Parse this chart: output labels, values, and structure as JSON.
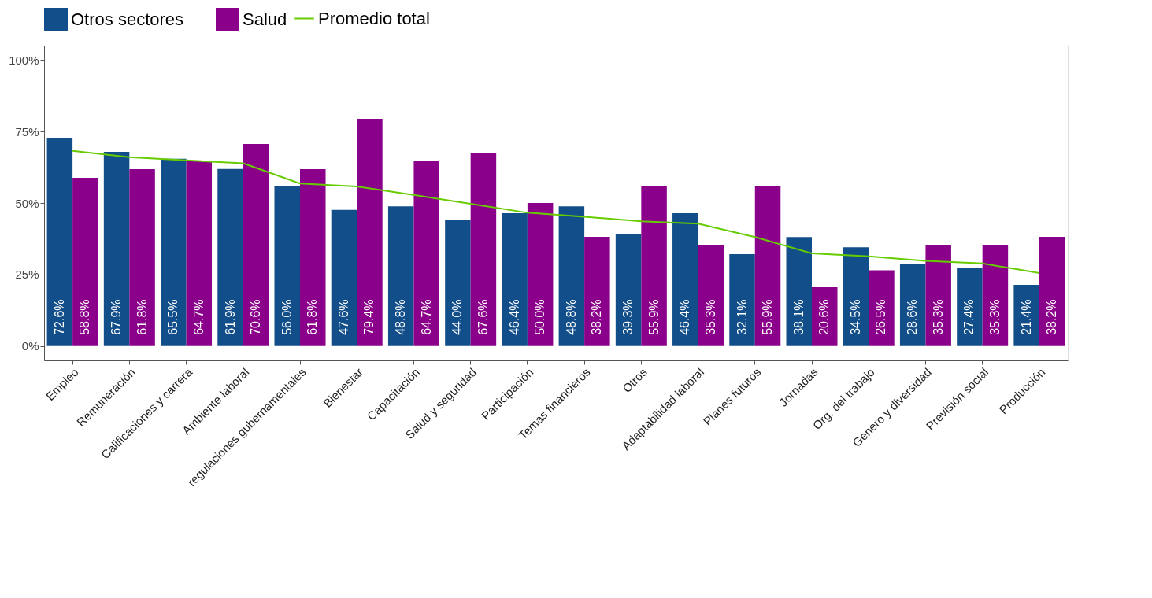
{
  "chart_data": {
    "type": "bar",
    "categories": [
      "Empleo",
      "Remuneración",
      "Calificaciones y carrera",
      "Ambiente laboral",
      "regulaciones gubernamentales",
      "Bienestar",
      "Capacitación",
      "Salud y seguridad",
      "Participación",
      "Temas financieros",
      "Otros",
      "Adaptabilidad laboral",
      "Planes futuros",
      "Jornadas",
      "Org. del trabajo",
      "Género y diversidad",
      "Previsión social",
      "Producción"
    ],
    "series": [
      {
        "name": "Otros sectores",
        "color": "#124e89",
        "values": [
          72.6,
          67.9,
          65.5,
          61.9,
          56.0,
          47.6,
          48.8,
          44.0,
          46.4,
          48.8,
          39.3,
          46.4,
          32.1,
          38.1,
          34.5,
          28.6,
          27.4,
          21.4
        ],
        "value_labels": [
          "72.6%",
          "67.9%",
          "65.5%",
          "61.9%",
          "56.0%",
          "47.6%",
          "48.8%",
          "44.0%",
          "46.4%",
          "48.8%",
          "39.3%",
          "46.4%",
          "32.1%",
          "38.1%",
          "34.5%",
          "28.6%",
          "27.4%",
          "21.4%"
        ]
      },
      {
        "name": "Salud",
        "color": "#8b008b",
        "values": [
          58.8,
          61.8,
          64.7,
          70.6,
          61.8,
          79.4,
          64.7,
          67.6,
          50.0,
          38.2,
          55.9,
          35.3,
          55.9,
          20.6,
          26.5,
          35.3,
          35.3,
          38.2
        ],
        "value_labels": [
          "58.8%",
          "61.8%",
          "64.7%",
          "70.6%",
          "61.8%",
          "79.4%",
          "64.7%",
          "67.6%",
          "50.0%",
          "38.2%",
          "55.9%",
          "35.3%",
          "55.9%",
          "20.6%",
          "26.5%",
          "35.3%",
          "35.3%",
          "38.2%"
        ]
      },
      {
        "name": "Promedio total",
        "type": "line",
        "color": "#66cc00",
        "values": [
          68.2,
          66.0,
          64.9,
          63.9,
          56.8,
          55.8,
          52.8,
          49.7,
          46.6,
          45.2,
          43.6,
          42.8,
          38.1,
          32.4,
          31.4,
          29.8,
          28.9,
          25.5
        ]
      }
    ],
    "ylim": [
      -5,
      105
    ],
    "yticks": [
      {
        "value": 0,
        "label": "0%"
      },
      {
        "value": 25,
        "label": "25%"
      },
      {
        "value": 50,
        "label": "50%"
      },
      {
        "value": 75,
        "label": "75%"
      },
      {
        "value": 100,
        "label": "100%"
      }
    ],
    "grid": false,
    "legend": "top",
    "marker": "none",
    "line_style": "solid"
  }
}
